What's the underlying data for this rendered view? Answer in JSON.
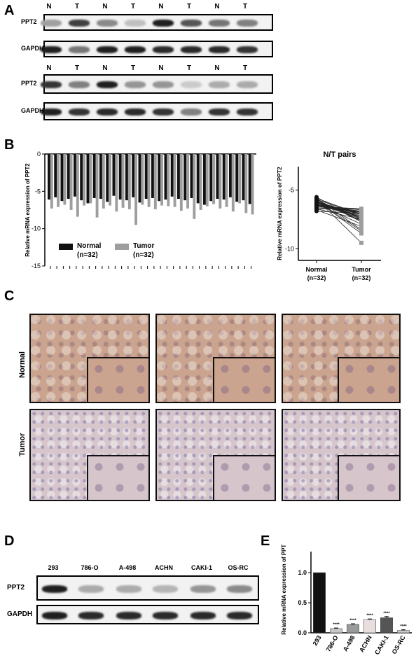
{
  "panels": {
    "a": {
      "label": "A",
      "blots": [
        {
          "lanes": [
            "N",
            "T",
            "N",
            "T",
            "N",
            "T",
            "N",
            "T"
          ],
          "protein": "PPT2",
          "intensity": [
            0.35,
            0.8,
            0.45,
            0.2,
            0.95,
            0.7,
            0.55,
            0.5
          ]
        },
        {
          "lanes": [],
          "protein": "GAPDH",
          "intensity": [
            0.95,
            0.55,
            0.95,
            0.95,
            0.9,
            0.9,
            0.9,
            0.85
          ]
        },
        {
          "lanes": [
            "N",
            "T",
            "N",
            "T",
            "N",
            "T",
            "N",
            "T"
          ],
          "protein": "PPT2",
          "intensity": [
            0.85,
            0.5,
            0.95,
            0.4,
            0.4,
            0.15,
            0.3,
            0.3
          ]
        },
        {
          "lanes": [],
          "protein": "GAPDH",
          "intensity": [
            0.95,
            0.85,
            0.9,
            0.9,
            0.85,
            0.5,
            0.85,
            0.85
          ]
        }
      ]
    },
    "b": {
      "label": "B",
      "bar_chart": {
        "type": "bar",
        "ylabel": "Relative mRNA  expression of PPT2",
        "yticks": [
          0,
          -5,
          -10,
          -15
        ],
        "ylim": [
          -15,
          0
        ],
        "legend": [
          {
            "name": "Normal",
            "sub": "(n=32)",
            "color": "#111111"
          },
          {
            "name": "Tumor",
            "sub": "(n=32)",
            "color": "#9e9e9e"
          }
        ],
        "normal": [
          -6.1,
          -5.8,
          -6.3,
          -6.0,
          -5.7,
          -6.2,
          -6.6,
          -5.9,
          -6.0,
          -6.4,
          -5.6,
          -6.1,
          -6.2,
          -5.8,
          -6.5,
          -6.0,
          -5.9,
          -6.3,
          -6.1,
          -5.7,
          -6.0,
          -6.2,
          -5.9,
          -6.6,
          -6.8,
          -6.3,
          -6.0,
          -6.1,
          -5.8,
          -6.4,
          -6.2,
          -6.7
        ],
        "tumor": [
          -7.3,
          -7.1,
          -6.8,
          -7.5,
          -8.4,
          -6.9,
          -6.6,
          -8.5,
          -7.3,
          -6.9,
          -7.7,
          -7.2,
          -7.4,
          -9.5,
          -6.8,
          -7.1,
          -7.4,
          -6.9,
          -7.0,
          -7.1,
          -7.6,
          -7.3,
          -8.7,
          -7.5,
          -7.0,
          -6.7,
          -7.3,
          -7.1,
          -7.7,
          -6.6,
          -7.9,
          -8.1
        ]
      },
      "pair_chart": {
        "type": "scatter",
        "title": "N/T pairs",
        "ylabel": "Relative mRNA  expression of PPT2",
        "yticks": [
          -5,
          -10
        ],
        "ylim": [
          -11,
          -3
        ],
        "categories": [
          {
            "name": "Normal",
            "sub": "(n=32)"
          },
          {
            "name": "Tumor",
            "sub": "(n=32)"
          }
        ]
      }
    },
    "c": {
      "label": "C",
      "rows": [
        "Normal",
        "Tumor"
      ],
      "normal_tone": "#caa48e",
      "tumor_tone": "#d6c6cc"
    },
    "d": {
      "label": "D",
      "lanes": [
        "293",
        "786-O",
        "A-498",
        "ACHN",
        "CAKI-1",
        "OS-RC"
      ],
      "blots": [
        {
          "protein": "PPT2",
          "intensity": [
            0.95,
            0.3,
            0.3,
            0.25,
            0.4,
            0.45
          ]
        },
        {
          "protein": "GAPDH",
          "intensity": [
            0.95,
            0.9,
            0.9,
            0.9,
            0.9,
            0.9
          ]
        }
      ]
    },
    "e": {
      "label": "E",
      "chart_data": {
        "type": "bar",
        "ylabel": "Relative mRNA expression of PPT2",
        "categories": [
          "293",
          "786-O",
          "A-498",
          "ACHN",
          "CAKI-1",
          "OS-RC"
        ],
        "values": [
          1.0,
          0.07,
          0.14,
          0.22,
          0.25,
          0.04
        ],
        "errors": [
          0.0,
          0.01,
          0.01,
          0.01,
          0.02,
          0.01
        ],
        "colors": [
          "#111111",
          "#c8c8c8",
          "#9a9a9a",
          "#e8dede",
          "#555555",
          "#c8c8c8"
        ],
        "annotations": [
          "",
          "****",
          "****",
          "****",
          "****",
          "****"
        ],
        "yticks": [
          "0.0",
          "0.5",
          "1.0"
        ],
        "ylim": [
          0,
          1.35
        ]
      }
    }
  }
}
